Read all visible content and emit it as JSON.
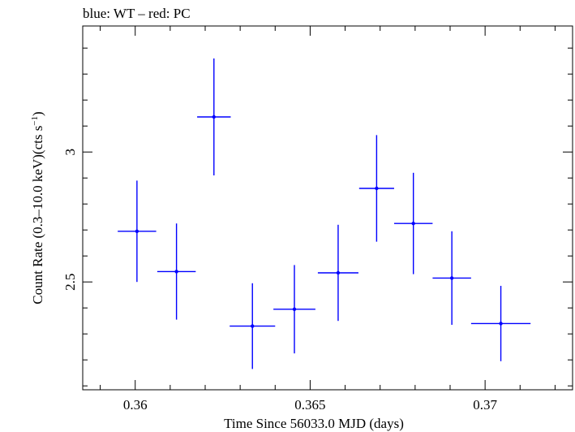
{
  "chart_data": {
    "type": "scatter",
    "title": "blue: WT – red: PC",
    "xlabel": "Time Since 56033.0 MJD (days)",
    "ylabel_main": "Count Rate (0.3–10.0 keV)(cts s",
    "ylabel_sup": "−1",
    "ylabel_close": ")",
    "xlim": [
      0.3585,
      0.3725
    ],
    "ylim": [
      2.085,
      3.485
    ],
    "x_ticks": [
      {
        "value": 0.36,
        "label": "0.36"
      },
      {
        "value": 0.365,
        "label": "0.365"
      },
      {
        "value": 0.37,
        "label": "0.37"
      }
    ],
    "y_ticks": [
      {
        "value": 2.5,
        "label": "2.5"
      },
      {
        "value": 3.0,
        "label": "3"
      }
    ],
    "grid": false,
    "colors": {
      "series": "#0000ff",
      "axes": "#000000"
    },
    "series": [
      {
        "color": "#0000ff",
        "points": [
          {
            "x": 0.36005,
            "xerr": 0.00055,
            "y": 2.695,
            "yerr": 0.195
          },
          {
            "x": 0.36118,
            "xerr": 0.00055,
            "y": 2.54,
            "yerr": 0.185
          },
          {
            "x": 0.36225,
            "xerr": 0.00048,
            "y": 3.135,
            "yerr": 0.225
          },
          {
            "x": 0.36335,
            "xerr": 0.00065,
            "y": 2.33,
            "yerr": 0.165
          },
          {
            "x": 0.36455,
            "xerr": 0.0006,
            "y": 2.395,
            "yerr": 0.17
          },
          {
            "x": 0.3658,
            "xerr": 0.00058,
            "y": 2.535,
            "yerr": 0.185
          },
          {
            "x": 0.3669,
            "xerr": 0.0005,
            "y": 2.86,
            "yerr": 0.205
          },
          {
            "x": 0.36795,
            "xerr": 0.00055,
            "y": 2.725,
            "yerr": 0.195
          },
          {
            "x": 0.36905,
            "xerr": 0.00055,
            "y": 2.515,
            "yerr": 0.18
          },
          {
            "x": 0.37045,
            "xerr": 0.00085,
            "y": 2.34,
            "yerr": 0.145
          }
        ]
      }
    ]
  }
}
